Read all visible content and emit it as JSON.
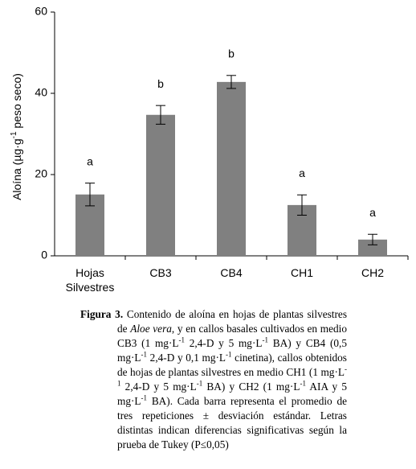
{
  "chart_data": {
    "type": "bar",
    "ylabel": {
      "before": "Aloína (µg·g",
      "sup": "-1",
      "after": " peso seco)"
    },
    "categories": [
      "Hojas Silvestres",
      "CB3",
      "CB4",
      "CH1",
      "CH2"
    ],
    "values": [
      15.1,
      34.7,
      42.8,
      12.5,
      4.0
    ],
    "errors": [
      2.8,
      2.3,
      1.6,
      2.5,
      1.3
    ],
    "annotations": [
      "a",
      "b",
      "b",
      "a",
      "a"
    ],
    "color": "#808080",
    "ylim": [
      0,
      60
    ],
    "yticks": [
      0,
      20,
      40,
      60
    ],
    "grid": false
  },
  "caption": {
    "label": "Figura 3.",
    "parts": [
      " Contenido de aloína en hojas de plantas silvestres de ",
      {
        "text": "Aloe vera",
        "format": "italic"
      },
      ", y en callos basales cultivados en medio CB3 (1 mg·L",
      {
        "text": "-1",
        "format": "sup"
      },
      " 2,4-D y 5 mg·L",
      {
        "text": "-1",
        "format": "sup"
      },
      " BA) y CB4 (0,5 mg·L",
      {
        "text": "-1",
        "format": "sup"
      },
      " 2,4-D y 0,1 mg·L",
      {
        "text": "-1",
        "format": "sup"
      },
      " cinetina), callos obtenidos de hojas de plantas silvestres en medio CH1 (1 mg·L",
      {
        "text": "-1",
        "format": "sup"
      },
      " 2,4-D y 5 mg·L",
      {
        "text": "-1",
        "format": "sup"
      },
      " BA) y CH2 (1 mg·L",
      {
        "text": "-1",
        "format": "sup"
      },
      " AIA y 5 mg·L",
      {
        "text": "-1",
        "format": "sup"
      },
      " BA). Cada barra representa el promedio de tres repeticiones ± desviación estándar. Letras distintas indican diferencias significativas según la prueba de Tukey (P≤0,05)"
    ]
  }
}
